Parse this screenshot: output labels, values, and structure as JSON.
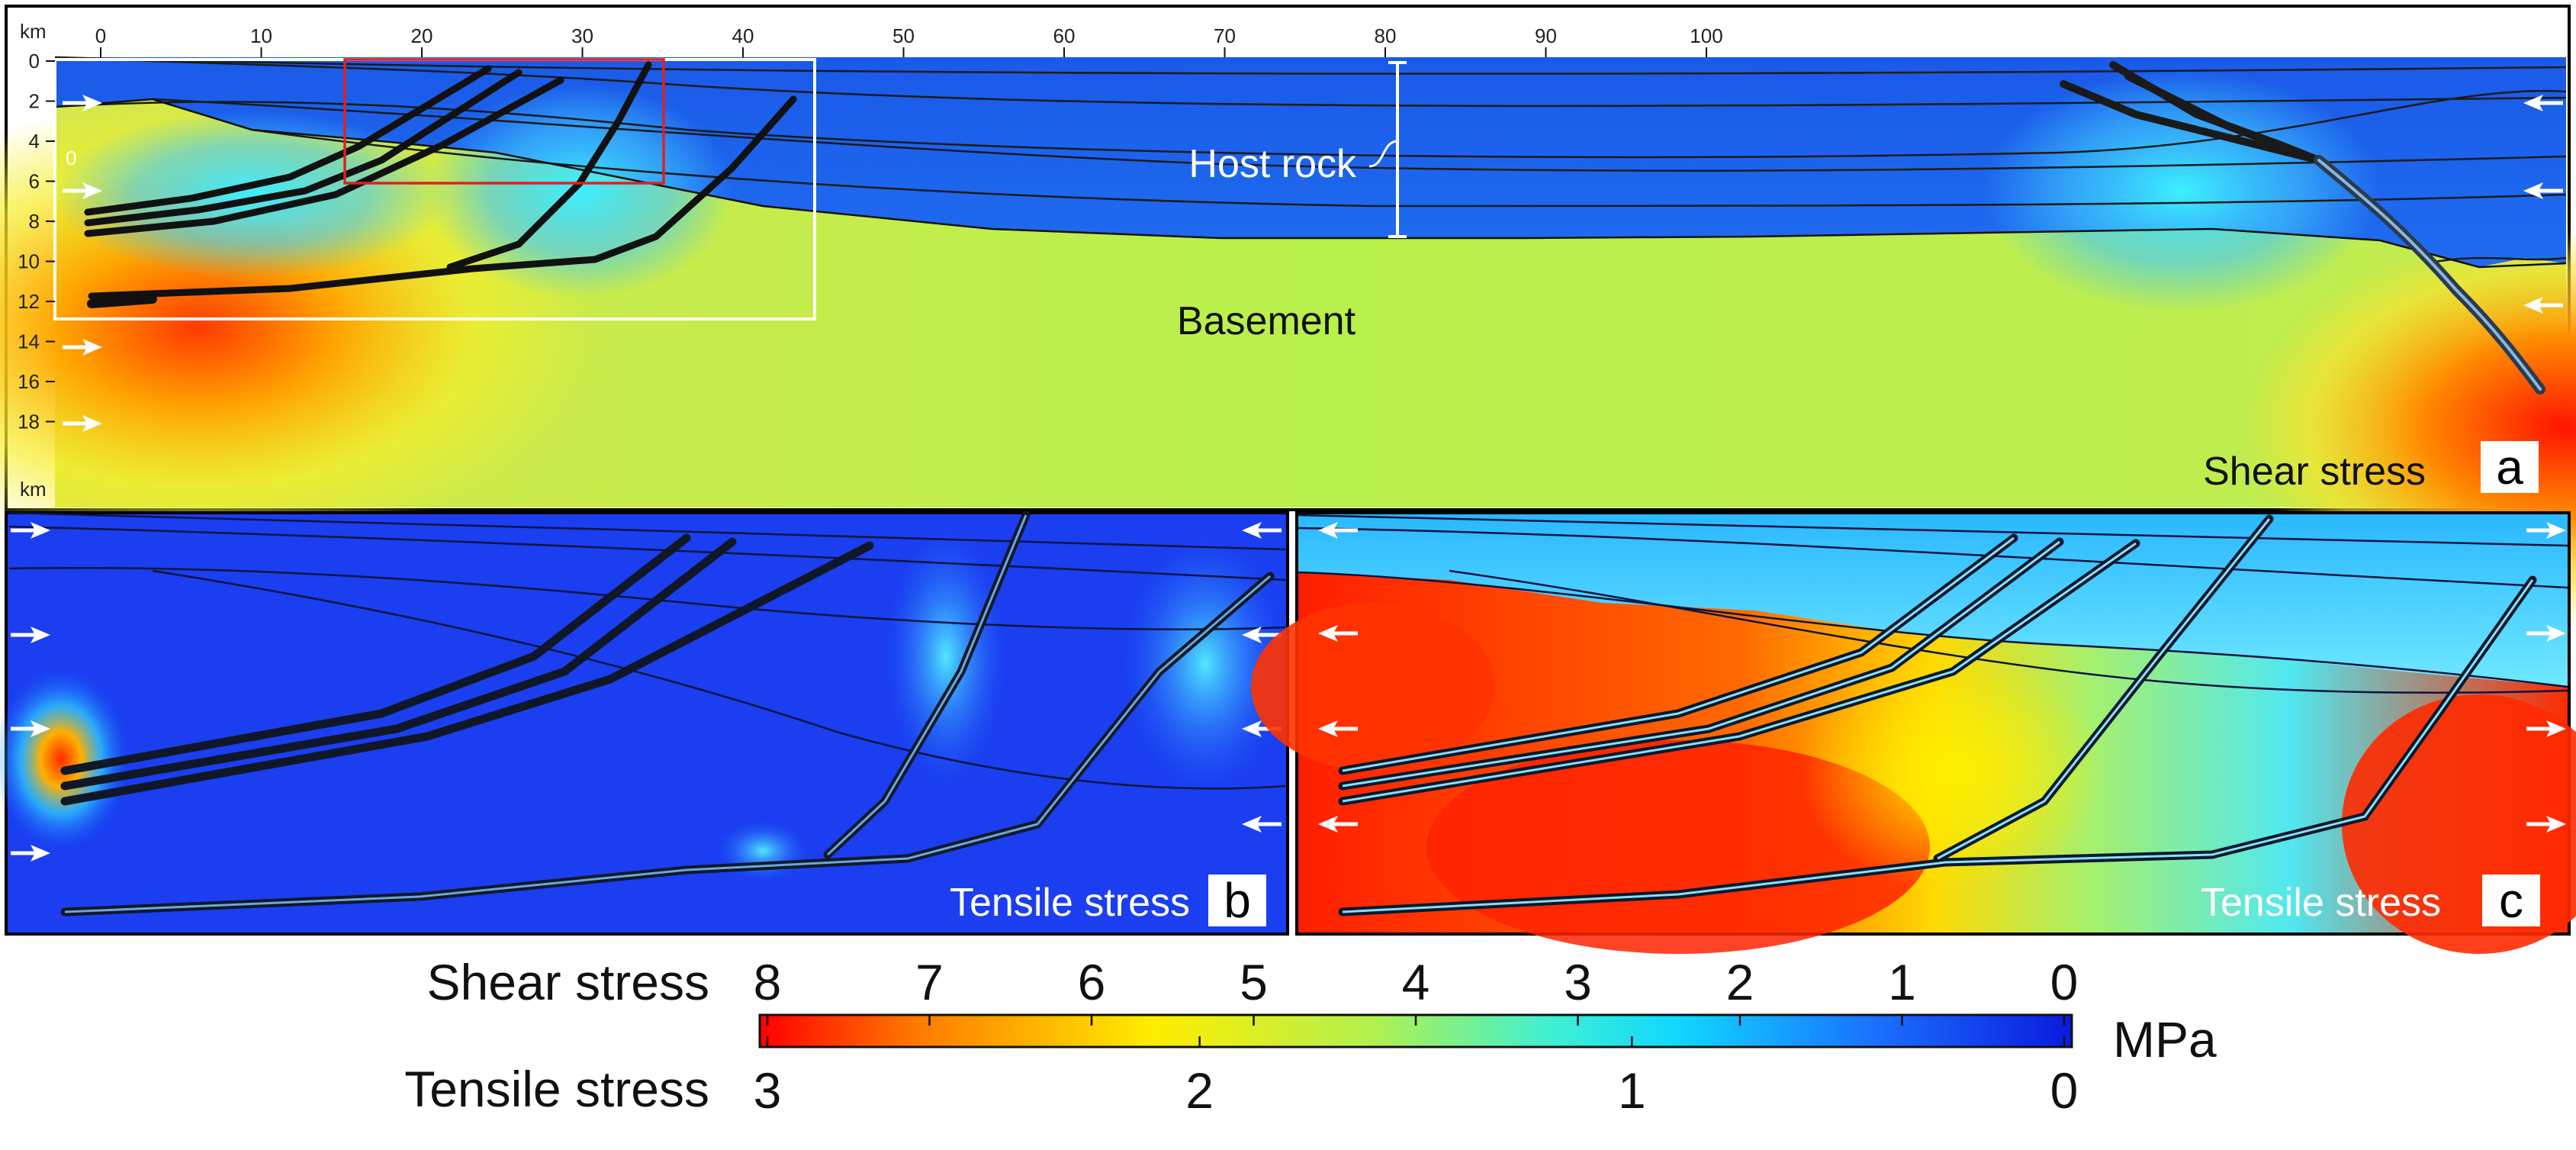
{
  "panel_a": {
    "letter": "a",
    "unit_label": "km",
    "x_ticks": [
      "0",
      "10",
      "20",
      "30",
      "40",
      "50",
      "60",
      "70",
      "80",
      "90",
      "100"
    ],
    "y_ticks": [
      "0",
      "2",
      "4",
      "6",
      "8",
      "10",
      "12",
      "14",
      "16",
      "18"
    ],
    "inset_tick": "0",
    "host_rock_label": "Host rock",
    "basement_label": "Basement",
    "stress_label": "Shear stress"
  },
  "panel_b": {
    "letter": "b",
    "stress_label": "Tensile stress"
  },
  "panel_c": {
    "letter": "c",
    "stress_label": "Tensile stress"
  },
  "legend": {
    "shear_label": "Shear stress",
    "shear_ticks": [
      "8",
      "7",
      "6",
      "5",
      "4",
      "3",
      "2",
      "1",
      "0"
    ],
    "tensile_label": "Tensile stress",
    "tensile_ticks": [
      "3",
      "2",
      "1",
      "0"
    ],
    "unit": "MPa"
  }
}
